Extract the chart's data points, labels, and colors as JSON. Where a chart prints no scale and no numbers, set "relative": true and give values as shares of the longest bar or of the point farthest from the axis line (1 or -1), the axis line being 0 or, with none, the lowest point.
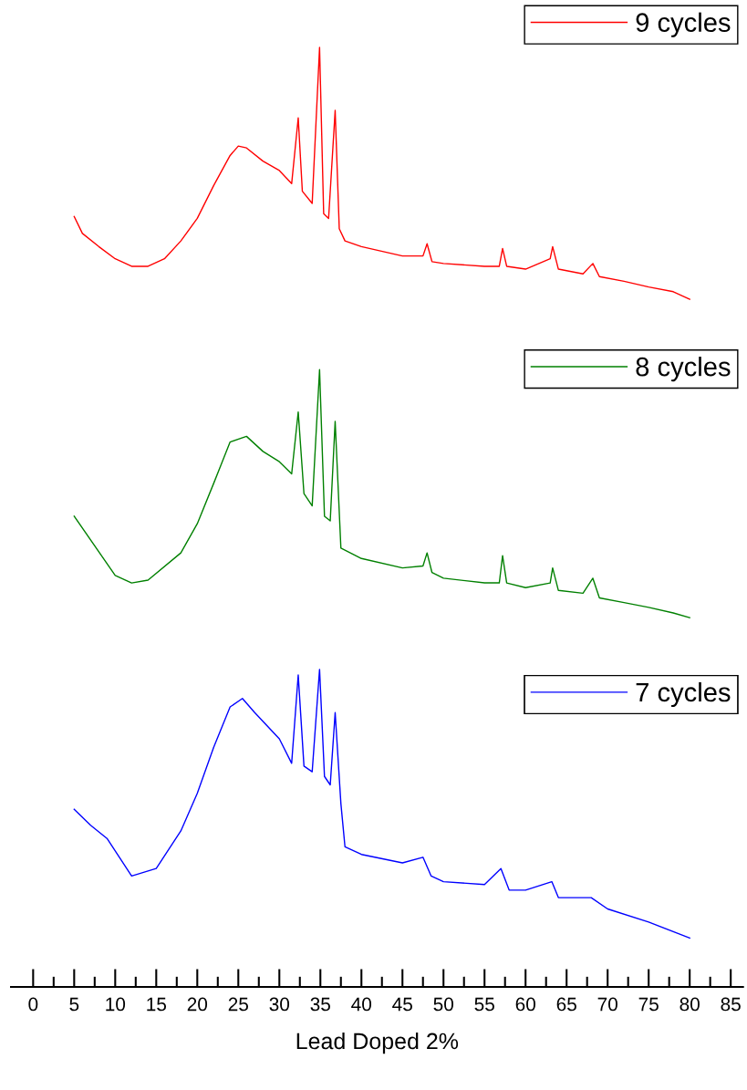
{
  "chart_data": {
    "type": "line",
    "relative": true,
    "tick_labels": "x",
    "legend": "top right",
    "xlim": [
      -2.7,
      86.5
    ],
    "xlabel": "Lead Doped 2%",
    "xticks": [
      0,
      {
        "value": 2.5,
        "label": null
      },
      5,
      {
        "value": 7.5,
        "label": null
      },
      10,
      {
        "value": 12.5,
        "label": null
      },
      15,
      {
        "value": 17.5,
        "label": null
      },
      20,
      {
        "value": 22.5,
        "label": null
      },
      25,
      {
        "value": 27.5,
        "label": null
      },
      30,
      {
        "value": 32.5,
        "label": null
      },
      35,
      {
        "value": 37.5,
        "label": null
      },
      40,
      {
        "value": 42.5,
        "label": null
      },
      45,
      {
        "value": 47.5,
        "label": null
      },
      50,
      {
        "value": 52.5,
        "label": null
      },
      55,
      {
        "value": 57.5,
        "label": null
      },
      60,
      {
        "value": 62.5,
        "label": null
      },
      65,
      {
        "value": 67.5,
        "label": null
      },
      70,
      {
        "value": 72.5,
        "label": null
      },
      75,
      {
        "value": 77.5,
        "label": null
      },
      80,
      {
        "value": 82.5,
        "label": null
      },
      85
    ],
    "series": [
      {
        "name": "9 cycles",
        "color": "#ff0000",
        "x": [
          5,
          6,
          8,
          10,
          12,
          14,
          16,
          18,
          20,
          22,
          24,
          25,
          26,
          28,
          30,
          31.5,
          32.3,
          32.8,
          34,
          34.9,
          35.4,
          36,
          36.8,
          37.3,
          38,
          40,
          45,
          47.5,
          48,
          48.6,
          50,
          55,
          56.8,
          57.2,
          57.7,
          60,
          63,
          63.3,
          64,
          67,
          68.2,
          69,
          72,
          75,
          78,
          80
        ],
        "values": [
          0.82,
          0.802,
          0.788,
          0.775,
          0.767,
          0.767,
          0.775,
          0.794,
          0.818,
          0.853,
          0.885,
          0.895,
          0.893,
          0.879,
          0.869,
          0.855,
          0.925,
          0.847,
          0.834,
          1,
          0.823,
          0.818,
          0.933,
          0.807,
          0.794,
          0.788,
          0.778,
          0.778,
          0.791,
          0.772,
          0.77,
          0.767,
          0.767,
          0.786,
          0.767,
          0.764,
          0.775,
          0.788,
          0.764,
          0.759,
          0.77,
          0.756,
          0.751,
          0.745,
          0.74,
          0.732
        ]
      },
      {
        "name": "8 cycles",
        "color": "#008000",
        "x": [
          5,
          10,
          12,
          14,
          18,
          20,
          22,
          24,
          26,
          28,
          30,
          31.5,
          32.3,
          33,
          34,
          34.9,
          35.5,
          36.2,
          36.8,
          37.5,
          40,
          45,
          47.5,
          48,
          48.6,
          50,
          55,
          56.8,
          57.2,
          57.7,
          60,
          63,
          63.3,
          64,
          67,
          68.2,
          69,
          72,
          75,
          78,
          80
        ],
        "values": [
          0.501,
          0.438,
          0.43,
          0.433,
          0.462,
          0.493,
          0.536,
          0.58,
          0.586,
          0.57,
          0.559,
          0.546,
          0.612,
          0.525,
          0.512,
          0.657,
          0.501,
          0.496,
          0.602,
          0.467,
          0.456,
          0.446,
          0.448,
          0.462,
          0.441,
          0.435,
          0.43,
          0.43,
          0.459,
          0.43,
          0.425,
          0.43,
          0.446,
          0.422,
          0.419,
          0.435,
          0.414,
          0.409,
          0.404,
          0.398,
          0.393
        ]
      },
      {
        "name": "7 cycles",
        "color": "#0000ff",
        "x": [
          5,
          7,
          9,
          12,
          15,
          18,
          20,
          22,
          24,
          25.5,
          27,
          30,
          31.5,
          32.3,
          33,
          34,
          34.9,
          35.5,
          36.2,
          36.8,
          37.5,
          38,
          40,
          45,
          47.5,
          48.5,
          50,
          55,
          57,
          58,
          60,
          63.2,
          64,
          66,
          68,
          70,
          75,
          80
        ],
        "values": [
          0.189,
          0.172,
          0.158,
          0.118,
          0.126,
          0.166,
          0.206,
          0.255,
          0.298,
          0.307,
          0.292,
          0.264,
          0.238,
          0.332,
          0.235,
          0.229,
          0.338,
          0.224,
          0.215,
          0.292,
          0.195,
          0.149,
          0.141,
          0.132,
          0.138,
          0.118,
          0.112,
          0.109,
          0.126,
          0.103,
          0.103,
          0.112,
          0.095,
          0.095,
          0.095,
          0.083,
          0.069,
          0.052
        ]
      }
    ]
  }
}
